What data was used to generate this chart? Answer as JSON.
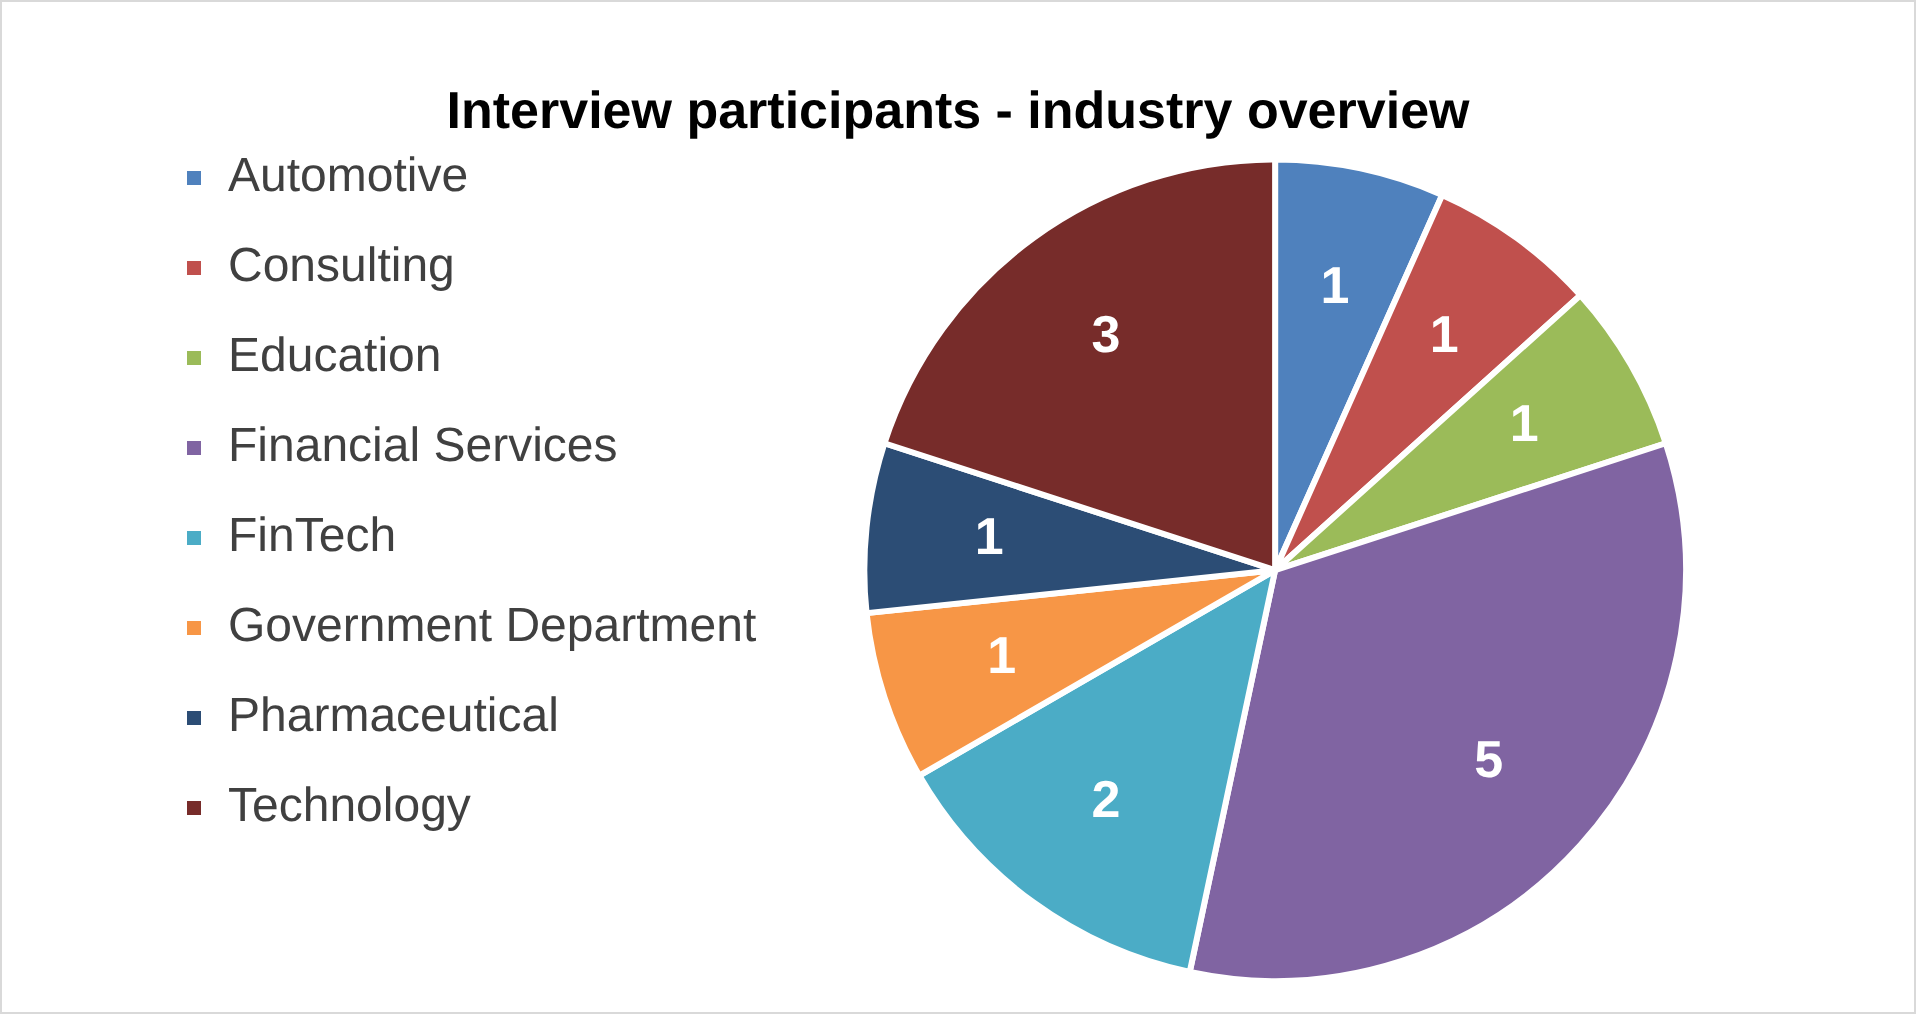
{
  "chart_data": {
    "type": "pie",
    "title": "Interview participants - industry overview",
    "categories": [
      "Automotive",
      "Consulting",
      "Education",
      "Financial Services",
      "FinTech",
      "Government Department",
      "Pharmaceutical",
      "Technology"
    ],
    "values": [
      1,
      1,
      1,
      5,
      2,
      1,
      1,
      3
    ],
    "colors": [
      "#4f81bd",
      "#c0504d",
      "#9bbb59",
      "#8064a2",
      "#4bacc6",
      "#f79646",
      "#2c4d75",
      "#772c2a"
    ],
    "data_labels": true,
    "legend": "left"
  }
}
